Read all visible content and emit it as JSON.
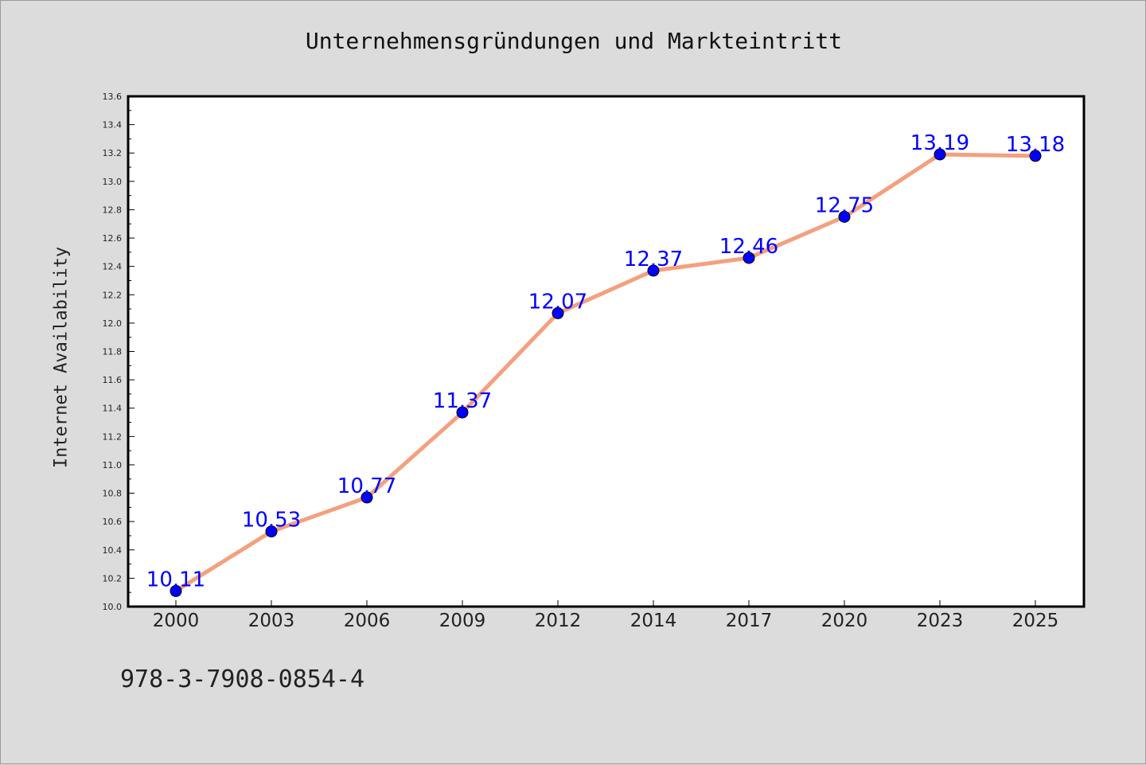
{
  "chart_data": {
    "type": "line",
    "title": "Unternehmensgründungen und Markteintritt",
    "xlabel": "",
    "ylabel": "Internet Availability",
    "categories": [
      "2000",
      "2003",
      "2006",
      "2009",
      "2012",
      "2014",
      "2017",
      "2020",
      "2023",
      "2025"
    ],
    "series": [
      {
        "values": [
          10.11,
          10.53,
          10.77,
          11.37,
          12.07,
          12.37,
          12.46,
          12.75,
          13.19,
          13.18
        ]
      }
    ],
    "data_labels": [
      "10.11",
      "10.53",
      "10.77",
      "11.37",
      "12.07",
      "12.37",
      "12.46",
      "12.75",
      "13.19",
      "13.18"
    ],
    "ylim": [
      10.0,
      13.6
    ],
    "yticks": [
      10.0,
      10.2,
      10.4,
      10.6,
      10.8,
      11.0,
      11.2,
      11.4,
      11.6,
      11.8,
      12.0,
      12.2,
      12.4,
      12.6,
      12.8,
      13.0,
      13.2,
      13.4,
      13.6
    ],
    "ytick_labels": [
      "10.0",
      "10.2",
      "10.4",
      "10.6",
      "10.8",
      "11.0",
      "11.2",
      "11.4",
      "11.6",
      "11.8",
      "12.0",
      "12.2",
      "12.4",
      "12.6",
      "12.8",
      "13.0",
      "13.2",
      "13.4",
      "13.6"
    ],
    "grid": false,
    "line_color": "#f4a07f",
    "marker_color": "#0000ff",
    "label_color": "#0000ff"
  },
  "footer": {
    "isbn": "978-3-7908-0854-4"
  }
}
